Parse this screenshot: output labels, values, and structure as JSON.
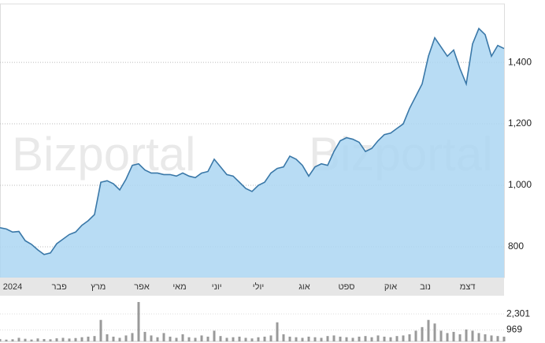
{
  "chart_data": {
    "type": "line",
    "watermark": "Bizportal",
    "xlim": [
      0,
      80
    ],
    "xticks": [
      {
        "value": 2,
        "label": "2024"
      },
      {
        "value": 9.4,
        "label": "פבר"
      },
      {
        "value": 15.6,
        "label": "מרץ"
      },
      {
        "value": 22.5,
        "label": "אפר"
      },
      {
        "value": 28.5,
        "label": "מאי"
      },
      {
        "value": 34.4,
        "label": "יוני"
      },
      {
        "value": 41,
        "label": "יולי"
      },
      {
        "value": 48.3,
        "label": "אוג"
      },
      {
        "value": 55,
        "label": "ספט"
      },
      {
        "value": 62,
        "label": "אוק"
      },
      {
        "value": 67.5,
        "label": "נוב"
      },
      {
        "value": 74.2,
        "label": "דצמ"
      }
    ],
    "ylim": [
      700,
      1590
    ],
    "yticks": [
      {
        "value": 800,
        "label": "800"
      },
      {
        "value": 1000,
        "label": "1,000"
      },
      {
        "value": 1200,
        "label": "1,200"
      },
      {
        "value": 1400,
        "label": "1,400"
      }
    ],
    "grid": true,
    "series": [
      {
        "color": "#3a78a8",
        "fill": "#abd6f2",
        "values": [
          862,
          858,
          848,
          850,
          820,
          808,
          790,
          775,
          780,
          810,
          825,
          840,
          848,
          870,
          885,
          905,
          1010,
          1015,
          1005,
          985,
          1020,
          1065,
          1070,
          1050,
          1040,
          1040,
          1035,
          1035,
          1030,
          1040,
          1030,
          1025,
          1040,
          1045,
          1085,
          1060,
          1035,
          1030,
          1010,
          990,
          980,
          1000,
          1010,
          1040,
          1055,
          1060,
          1095,
          1085,
          1065,
          1030,
          1060,
          1070,
          1065,
          1110,
          1145,
          1155,
          1150,
          1140,
          1110,
          1120,
          1145,
          1165,
          1170,
          1185,
          1200,
          1250,
          1290,
          1330,
          1420,
          1480,
          1450,
          1420,
          1440,
          1380,
          1330,
          1460,
          1510,
          1490,
          1420,
          1455,
          1445
        ]
      }
    ],
    "volume": {
      "color": "#9a9a9a",
      "ylim": [
        0,
        3500
      ],
      "yticks": [
        {
          "value": 969,
          "label": "969"
        },
        {
          "value": 2301,
          "label": "2,301"
        }
      ],
      "values": [
        200,
        150,
        180,
        300,
        220,
        160,
        250,
        200,
        180,
        260,
        300,
        240,
        280,
        350,
        400,
        450,
        1800,
        600,
        400,
        300,
        500,
        700,
        3300,
        800,
        500,
        350,
        700,
        400,
        300,
        600,
        350,
        300,
        500,
        400,
        900,
        450,
        300,
        350,
        400,
        300,
        250,
        350,
        400,
        500,
        1600,
        600,
        400,
        350,
        300,
        400,
        350,
        300,
        450,
        500,
        400,
        350,
        300,
        400,
        450,
        350,
        500,
        400,
        350,
        450,
        500,
        600,
        900,
        1200,
        1800,
        1500,
        900,
        700,
        800,
        600,
        1000,
        900,
        700,
        600,
        500,
        450,
        400
      ]
    }
  }
}
